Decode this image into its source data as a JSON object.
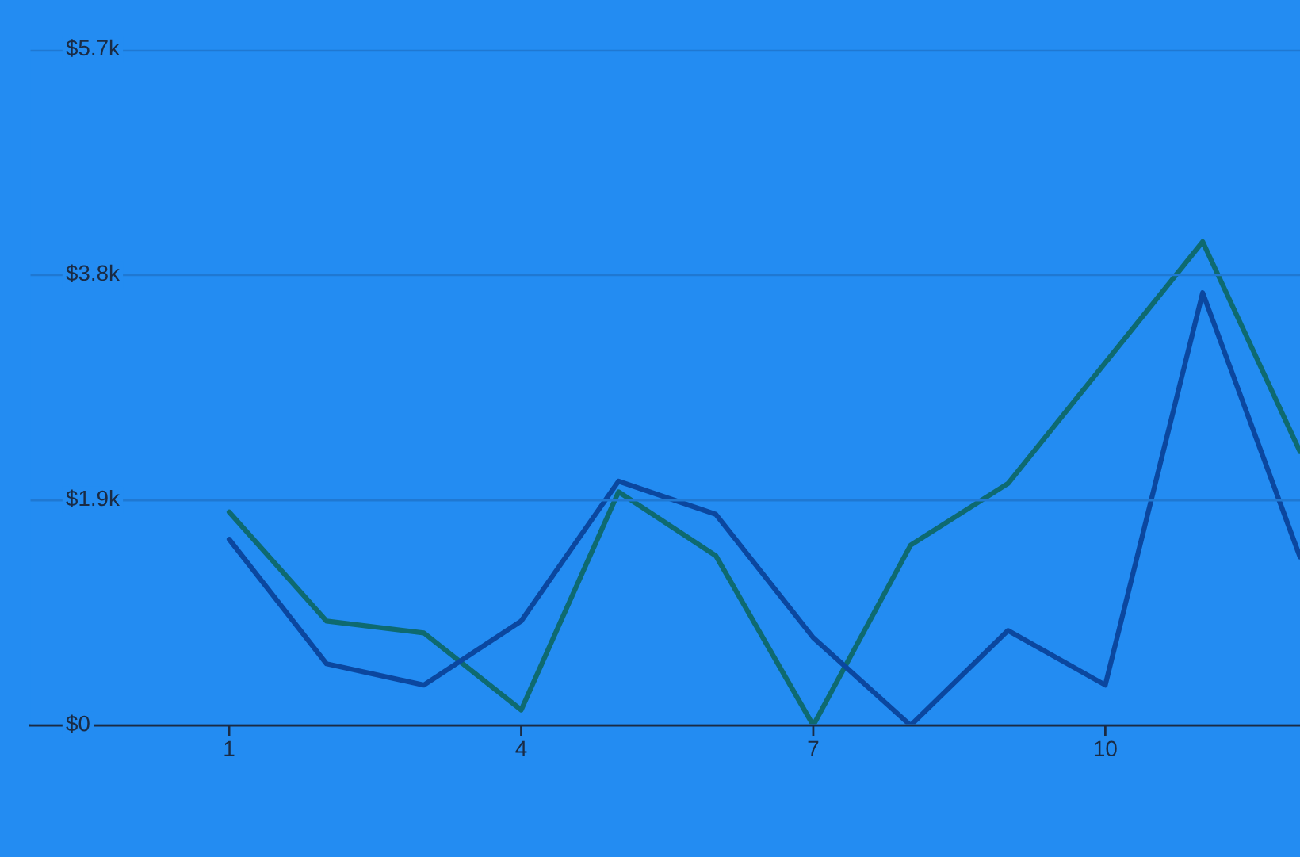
{
  "chart_data": {
    "type": "line",
    "x": [
      1,
      2,
      3,
      4,
      5,
      6,
      7,
      8,
      9,
      10,
      11,
      12
    ],
    "series": [
      {
        "color": "#0e6a70",
        "values": [
          1.8,
          0.88,
          0.78,
          0.13,
          1.97,
          1.43,
          0,
          1.52,
          2.04,
          3.06,
          4.08,
          2.31
        ]
      },
      {
        "color": "#0b479f",
        "values": [
          1.57,
          0.52,
          0.34,
          0.88,
          2.06,
          1.78,
          0.74,
          0,
          0.8,
          0.34,
          3.65,
          1.42
        ]
      }
    ],
    "xlim": [
      -1.04,
      12
    ],
    "xticks": [
      1,
      4,
      7,
      10
    ],
    "ylim": [
      0,
      5.7
    ],
    "yticks": [
      {
        "value": 0,
        "label": "$0"
      },
      {
        "value": 1.9,
        "label": "$1.9k"
      },
      {
        "value": 3.8,
        "label": "$3.8k"
      },
      {
        "value": 5.7,
        "label": "$5.7k"
      }
    ],
    "grid": "y",
    "legend": false,
    "marker": "none",
    "line_style": "solid"
  }
}
